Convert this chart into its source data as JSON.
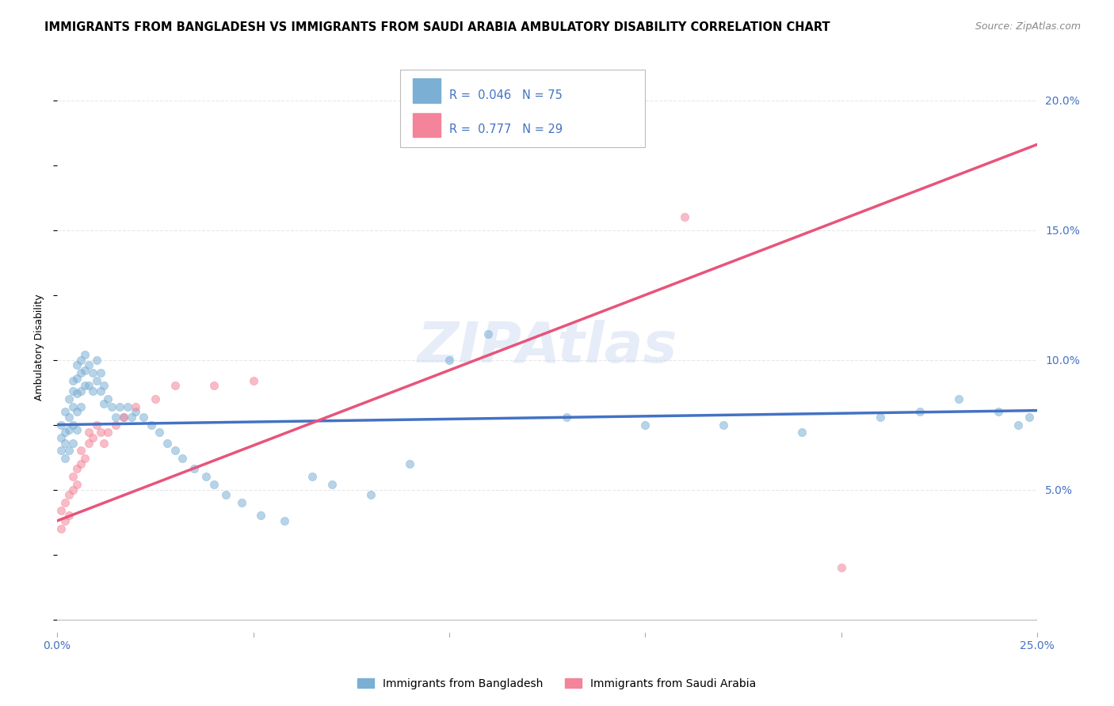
{
  "title": "IMMIGRANTS FROM BANGLADESH VS IMMIGRANTS FROM SAUDI ARABIA AMBULATORY DISABILITY CORRELATION CHART",
  "source": "Source: ZipAtlas.com",
  "ylabel": "Ambulatory Disability",
  "watermark": "ZIPAtlas",
  "legend_entries": [
    {
      "label": "Immigrants from Bangladesh",
      "R": "0.046",
      "N": "75"
    },
    {
      "label": "Immigrants from Saudi Arabia",
      "R": "0.777",
      "N": "29"
    }
  ],
  "bangladesh_x": [
    0.001,
    0.001,
    0.001,
    0.002,
    0.002,
    0.002,
    0.002,
    0.003,
    0.003,
    0.003,
    0.003,
    0.004,
    0.004,
    0.004,
    0.004,
    0.004,
    0.005,
    0.005,
    0.005,
    0.005,
    0.005,
    0.006,
    0.006,
    0.006,
    0.006,
    0.007,
    0.007,
    0.007,
    0.008,
    0.008,
    0.009,
    0.009,
    0.01,
    0.01,
    0.011,
    0.011,
    0.012,
    0.012,
    0.013,
    0.014,
    0.015,
    0.016,
    0.017,
    0.018,
    0.019,
    0.02,
    0.022,
    0.024,
    0.026,
    0.028,
    0.03,
    0.032,
    0.035,
    0.038,
    0.04,
    0.043,
    0.047,
    0.052,
    0.058,
    0.065,
    0.07,
    0.08,
    0.09,
    0.1,
    0.11,
    0.13,
    0.15,
    0.17,
    0.19,
    0.21,
    0.22,
    0.23,
    0.24,
    0.245,
    0.248
  ],
  "bangladesh_y": [
    0.075,
    0.07,
    0.065,
    0.08,
    0.072,
    0.068,
    0.062,
    0.085,
    0.078,
    0.073,
    0.065,
    0.092,
    0.088,
    0.082,
    0.075,
    0.068,
    0.098,
    0.093,
    0.087,
    0.08,
    0.073,
    0.1,
    0.095,
    0.088,
    0.082,
    0.102,
    0.096,
    0.09,
    0.098,
    0.09,
    0.095,
    0.088,
    0.1,
    0.092,
    0.095,
    0.088,
    0.09,
    0.083,
    0.085,
    0.082,
    0.078,
    0.082,
    0.078,
    0.082,
    0.078,
    0.08,
    0.078,
    0.075,
    0.072,
    0.068,
    0.065,
    0.062,
    0.058,
    0.055,
    0.052,
    0.048,
    0.045,
    0.04,
    0.038,
    0.055,
    0.052,
    0.048,
    0.06,
    0.1,
    0.11,
    0.078,
    0.075,
    0.075,
    0.072,
    0.078,
    0.08,
    0.085,
    0.08,
    0.075,
    0.078
  ],
  "saudi_x": [
    0.001,
    0.001,
    0.002,
    0.002,
    0.003,
    0.003,
    0.004,
    0.004,
    0.005,
    0.005,
    0.006,
    0.006,
    0.007,
    0.008,
    0.008,
    0.009,
    0.01,
    0.011,
    0.012,
    0.013,
    0.015,
    0.017,
    0.02,
    0.025,
    0.03,
    0.04,
    0.05,
    0.16,
    0.2
  ],
  "saudi_y": [
    0.035,
    0.042,
    0.038,
    0.045,
    0.04,
    0.048,
    0.05,
    0.055,
    0.052,
    0.058,
    0.06,
    0.065,
    0.062,
    0.068,
    0.072,
    0.07,
    0.075,
    0.072,
    0.068,
    0.072,
    0.075,
    0.078,
    0.082,
    0.085,
    0.09,
    0.09,
    0.092,
    0.155,
    0.02
  ],
  "xlim": [
    0.0,
    0.25
  ],
  "ylim": [
    -0.005,
    0.215
  ],
  "right_yticks": [
    0.05,
    0.1,
    0.15,
    0.2
  ],
  "right_ytick_labels": [
    "5.0%",
    "10.0%",
    "15.0%",
    "20.0%"
  ],
  "bg_color": "#ffffff",
  "grid_color": "#e8e8e8",
  "bangladesh_scatter_color": "#7bafd4",
  "saudi_scatter_color": "#f48499",
  "bangladesh_line_color": "#4472c4",
  "saudi_line_color": "#e8547a",
  "title_fontsize": 10.5,
  "source_fontsize": 9
}
